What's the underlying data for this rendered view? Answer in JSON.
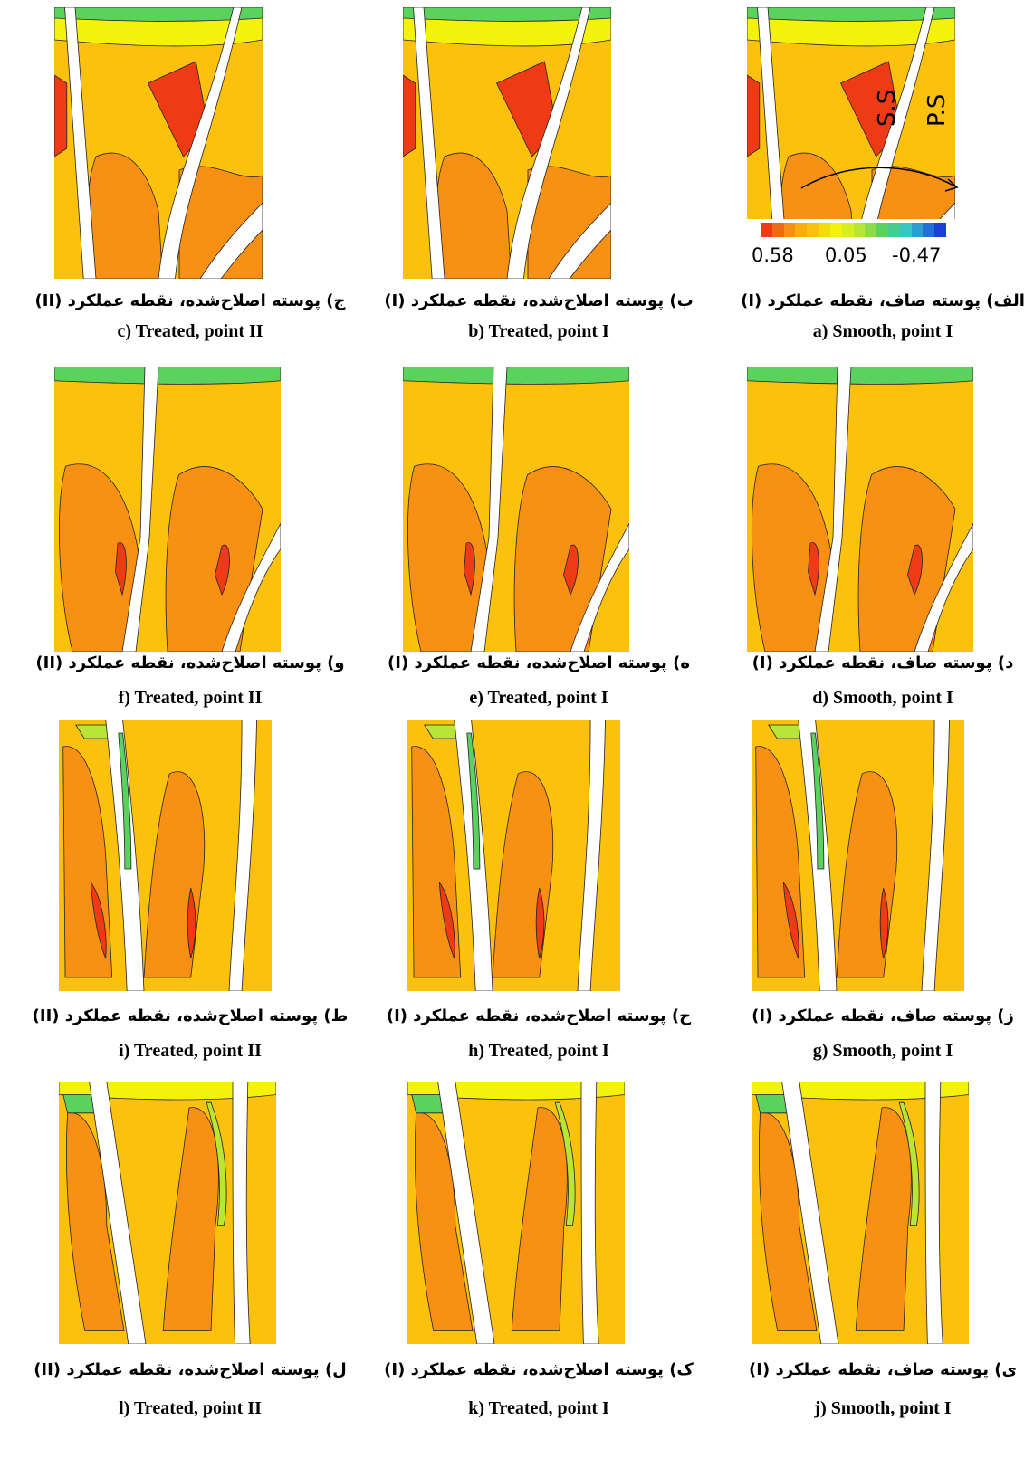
{
  "colors": {
    "high": "#ee3b16",
    "orange": "#f79013",
    "mid": "#fbc10c",
    "yellow": "#f4f20a",
    "ygreen": "#b9e535",
    "green": "#5bd15e",
    "cyan": "#38c6c2",
    "blue": "#1a3fd6",
    "blade": "#ffffff",
    "contour": "#222222"
  },
  "legend": {
    "values": [
      "0.58",
      "0.05",
      "-0.47"
    ],
    "colors": [
      "#ee3b16",
      "#f06a14",
      "#f79013",
      "#fbae0e",
      "#fbc10c",
      "#f4dc0a",
      "#f4f20a",
      "#d7ee22",
      "#b9e535",
      "#8cdb4a",
      "#5bd15e",
      "#46cc90",
      "#38c6c2",
      "#2c9fd0",
      "#2370d4",
      "#1a3fd6"
    ]
  },
  "annotations": {
    "ss": "S.S",
    "ps": "P.S"
  },
  "panels": [
    {
      "fa": "الف) پوسته صاف، نقطه عملکرد",
      "point": "(I)",
      "en": "a) Smooth, point I",
      "type": "top"
    },
    {
      "fa": "ب) پوسته اصلاح‌شده، نقطه عملکرد",
      "point": "(I)",
      "en": "b) Treated, point I",
      "type": "top"
    },
    {
      "fa": "ج) پوسته اصلاح‌شده، نقطه عملکرد",
      "point": "(II)",
      "en": "c) Treated, point II",
      "type": "top"
    },
    {
      "fa": "د) پوسته صاف، نقطه عملکرد",
      "point": "(I)",
      "en": "d) Smooth, point I",
      "type": "mid"
    },
    {
      "fa": "ه) پوسته اصلاح‌شده، نقطه عملکرد",
      "point": "(I)",
      "en": "e) Treated, point I",
      "type": "mid"
    },
    {
      "fa": "و) پوسته اصلاح‌شده، نقطه عملکرد",
      "point": "(II)",
      "en": "f) Treated, point II",
      "type": "mid"
    },
    {
      "fa": "ز) پوسته صاف، نقطه عملکرد",
      "point": "(I)",
      "en": "g) Smooth, point I",
      "type": "low"
    },
    {
      "fa": "ح) پوسته اصلاح‌شده، نقطه عملکرد",
      "point": "(I)",
      "en": "h) Treated, point I",
      "type": "low"
    },
    {
      "fa": "ط) پوسته اصلاح‌شده، نقطه عملکرد",
      "point": "(II)",
      "en": "i) Treated, point II",
      "type": "low"
    },
    {
      "fa": "ی) پوسته صاف، نقطه عملکرد",
      "point": "(I)",
      "en": "j) Smooth, point I",
      "type": "bottom"
    },
    {
      "fa": "ک) پوسته اصلاح‌شده، نقطه عملکرد",
      "point": "(I)",
      "en": "k) Treated, point I",
      "type": "bottom"
    },
    {
      "fa": "ل) پوسته اصلاح‌شده، نقطه عملکرد",
      "point": "(II)",
      "en": "l) Treated, point II",
      "type": "bottom"
    }
  ]
}
